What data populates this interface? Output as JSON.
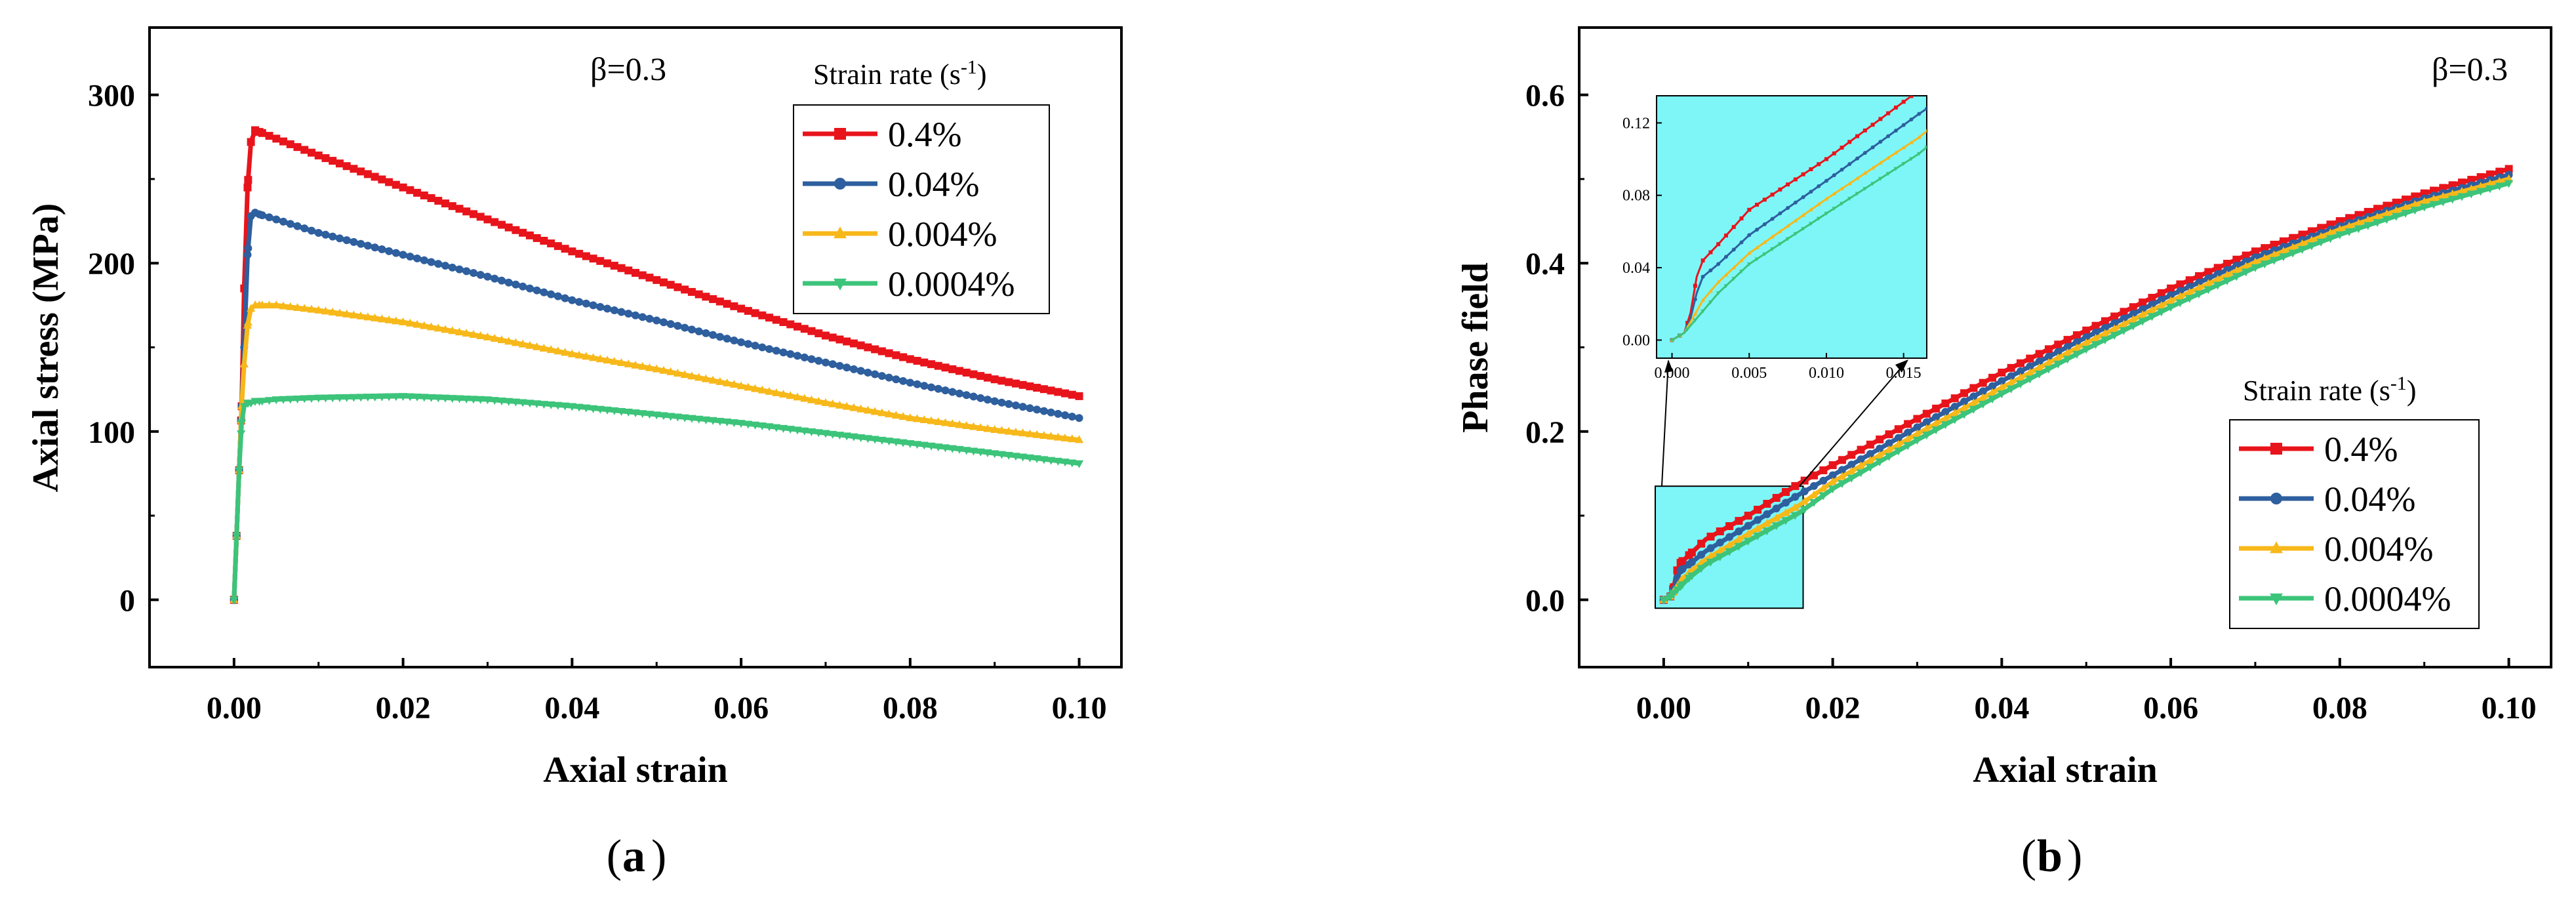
{
  "chart_data": [
    {
      "type": "line",
      "panel_label": "a",
      "annotation": "β=0.3",
      "xlabel": "Axial strain",
      "ylabel": "Axial stress (MPa)",
      "xlim": [
        -0.01,
        0.105
      ],
      "ylim": [
        -40,
        340
      ],
      "xticks": [
        0.0,
        0.02,
        0.04,
        0.06,
        0.08,
        0.1
      ],
      "xtick_labels": [
        "0.00",
        "0.02",
        "0.04",
        "0.06",
        "0.08",
        "0.10"
      ],
      "yticks": [
        0,
        100,
        200,
        300
      ],
      "ytick_labels": [
        "0",
        "100",
        "200",
        "300"
      ],
      "grid": false,
      "legend_title": "Strain rate (s",
      "legend_title_sup": "-1",
      "legend_title_end": ")",
      "legend_position": "top-right",
      "series": [
        {
          "name": "0.4%",
          "color": "#e8141b",
          "marker": "square",
          "x": [
            0,
            0.0003,
            0.0006,
            0.0009,
            0.0012,
            0.0016,
            0.002,
            0.0025,
            0.003,
            0.005,
            0.01,
            0.02,
            0.03,
            0.04,
            0.05,
            0.06,
            0.07,
            0.08,
            0.09,
            0.1
          ],
          "y": [
            0,
            38,
            77,
            115,
            185,
            245,
            272,
            279,
            278,
            274,
            264,
            245,
            226,
            207,
            190,
            173,
            157,
            143,
            131,
            121
          ]
        },
        {
          "name": "0.04%",
          "color": "#2e5f9e",
          "marker": "circle",
          "x": [
            0,
            0.0003,
            0.0006,
            0.0009,
            0.0012,
            0.0016,
            0.002,
            0.0025,
            0.003,
            0.005,
            0.01,
            0.02,
            0.03,
            0.04,
            0.05,
            0.06,
            0.07,
            0.08,
            0.09,
            0.1
          ],
          "y": [
            0,
            38,
            77,
            115,
            150,
            205,
            228,
            230,
            229,
            226,
            218,
            205,
            192,
            178,
            166,
            153,
            141,
            129,
            118,
            108
          ]
        },
        {
          "name": "0.004%",
          "color": "#f7b81a",
          "marker": "triangle-up",
          "x": [
            0,
            0.0003,
            0.0006,
            0.0009,
            0.0012,
            0.0016,
            0.002,
            0.0025,
            0.003,
            0.005,
            0.01,
            0.02,
            0.03,
            0.04,
            0.05,
            0.06,
            0.07,
            0.08,
            0.09,
            0.1
          ],
          "y": [
            0,
            38,
            77,
            115,
            140,
            163,
            173,
            175,
            175,
            175,
            172,
            165,
            156,
            146,
            137,
            127,
            117,
            108,
            101,
            95
          ]
        },
        {
          "name": "0.0004%",
          "color": "#3cc47a",
          "marker": "triangle-down",
          "x": [
            0,
            0.0003,
            0.0006,
            0.0009,
            0.0012,
            0.0016,
            0.002,
            0.0025,
            0.003,
            0.005,
            0.01,
            0.02,
            0.03,
            0.04,
            0.05,
            0.06,
            0.07,
            0.08,
            0.09,
            0.1
          ],
          "y": [
            0,
            38,
            77,
            105,
            115,
            117,
            117,
            118,
            118,
            119,
            120,
            121,
            119,
            115,
            110,
            105,
            99,
            93,
            87,
            81
          ]
        }
      ]
    },
    {
      "type": "line",
      "panel_label": "b",
      "annotation": "β=0.3",
      "xlabel": "Axial strain",
      "ylabel": "Phase field",
      "xlim": [
        -0.01,
        0.105
      ],
      "ylim": [
        -0.08,
        0.68
      ],
      "xticks": [
        0.0,
        0.02,
        0.04,
        0.06,
        0.08,
        0.1
      ],
      "xtick_labels": [
        "0.00",
        "0.02",
        "0.04",
        "0.06",
        "0.08",
        "0.10"
      ],
      "yticks": [
        0.0,
        0.2,
        0.4,
        0.6
      ],
      "ytick_labels": [
        "0.0",
        "0.2",
        "0.4",
        "0.6"
      ],
      "grid": false,
      "legend_title": "Strain rate (s",
      "legend_title_sup": "-1",
      "legend_title_end": ")",
      "legend_position": "bottom-right",
      "series": [
        {
          "name": "0.4%",
          "color": "#e8141b",
          "marker": "square",
          "x": [
            0,
            0.0008,
            0.0012,
            0.0016,
            0.002,
            0.003,
            0.005,
            0.01,
            0.016,
            0.02,
            0.03,
            0.04,
            0.05,
            0.06,
            0.07,
            0.08,
            0.09,
            0.1
          ],
          "y": [
            0,
            0.004,
            0.015,
            0.035,
            0.044,
            0.053,
            0.072,
            0.1,
            0.138,
            0.16,
            0.215,
            0.27,
            0.32,
            0.37,
            0.414,
            0.45,
            0.483,
            0.512
          ]
        },
        {
          "name": "0.04%",
          "color": "#2e5f9e",
          "marker": "circle",
          "x": [
            0,
            0.0008,
            0.0012,
            0.0016,
            0.002,
            0.003,
            0.005,
            0.01,
            0.016,
            0.02,
            0.03,
            0.04,
            0.05,
            0.06,
            0.07,
            0.08,
            0.09,
            0.1
          ],
          "y": [
            0,
            0.004,
            0.012,
            0.026,
            0.035,
            0.042,
            0.058,
            0.088,
            0.125,
            0.148,
            0.205,
            0.26,
            0.312,
            0.362,
            0.407,
            0.444,
            0.477,
            0.505
          ]
        },
        {
          "name": "0.004%",
          "color": "#f7b81a",
          "marker": "triangle-up",
          "x": [
            0,
            0.0008,
            0.0012,
            0.0016,
            0.002,
            0.003,
            0.005,
            0.01,
            0.016,
            0.02,
            0.03,
            0.04,
            0.05,
            0.06,
            0.07,
            0.08,
            0.09,
            0.1
          ],
          "y": [
            0,
            0.004,
            0.01,
            0.016,
            0.022,
            0.032,
            0.048,
            0.078,
            0.112,
            0.14,
            0.197,
            0.252,
            0.305,
            0.355,
            0.401,
            0.44,
            0.473,
            0.5
          ]
        },
        {
          "name": "0.0004%",
          "color": "#3cc47a",
          "marker": "triangle-down",
          "x": [
            0,
            0.0008,
            0.0012,
            0.0016,
            0.002,
            0.003,
            0.005,
            0.01,
            0.016,
            0.02,
            0.03,
            0.04,
            0.05,
            0.06,
            0.07,
            0.08,
            0.09,
            0.1
          ],
          "y": [
            0,
            0.004,
            0.008,
            0.012,
            0.016,
            0.026,
            0.042,
            0.07,
            0.103,
            0.132,
            0.19,
            0.245,
            0.298,
            0.348,
            0.395,
            0.434,
            0.467,
            0.495
          ]
        }
      ],
      "inset": {
        "background": "#7ef6f8",
        "zoom_region": {
          "xlim": [
            -0.001,
            0.0165
          ],
          "ylim": [
            -0.01,
            0.135
          ]
        },
        "xticks": [
          0.0,
          0.005,
          0.01,
          0.015
        ],
        "xtick_labels": [
          "0.000",
          "0.005",
          "0.010",
          "0.015"
        ],
        "yticks": [
          0.0,
          0.04,
          0.08,
          0.12
        ],
        "ytick_labels": [
          "0.00",
          "0.04",
          "0.08",
          "0.12"
        ]
      }
    }
  ],
  "captions": {
    "a": "a",
    "b": "b"
  }
}
